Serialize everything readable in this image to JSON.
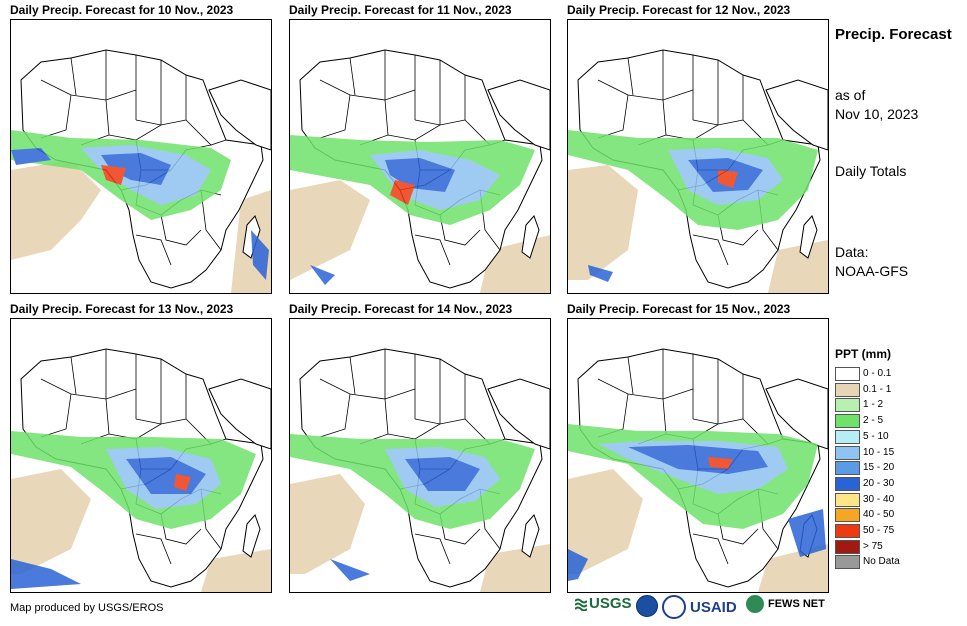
{
  "panels": [
    {
      "title": "Daily Precip. Forecast for 10 Nov., 2023"
    },
    {
      "title": "Daily Precip. Forecast for 11 Nov., 2023"
    },
    {
      "title": "Daily Precip. Forecast for 12 Nov., 2023"
    },
    {
      "title": "Daily Precip. Forecast for 13 Nov., 2023"
    },
    {
      "title": "Daily Precip. Forecast for 14 Nov., 2023"
    },
    {
      "title": "Daily Precip. Forecast for 15 Nov., 2023"
    }
  ],
  "sidebar": {
    "title": "Precip. Forecast",
    "as_of_label": "as of",
    "as_of_date": "Nov 10, 2023",
    "totals": "Daily Totals",
    "data_label": "Data:",
    "data_source": "NOAA-GFS"
  },
  "legend": {
    "title": "PPT (mm)",
    "items": [
      {
        "label": "0 - 0.1",
        "color": "#ffffff"
      },
      {
        "label": "0.1 - 1",
        "color": "#e8d5b5"
      },
      {
        "label": "1 - 2",
        "color": "#b8f0b0"
      },
      {
        "label": "2 - 5",
        "color": "#6fe26a"
      },
      {
        "label": "5 - 10",
        "color": "#b5eef5"
      },
      {
        "label": "10 - 15",
        "color": "#8fc3f2"
      },
      {
        "label": "15 - 20",
        "color": "#5b9be6"
      },
      {
        "label": "20 - 30",
        "color": "#2a63d6"
      },
      {
        "label": "30 - 40",
        "color": "#fde58a"
      },
      {
        "label": "40 - 50",
        "color": "#f5a623"
      },
      {
        "label": "50 - 75",
        "color": "#ee3a12"
      },
      {
        "label": "> 75",
        "color": "#a11a12"
      },
      {
        "label": "No Data",
        "color": "#999999"
      }
    ]
  },
  "footer": {
    "credit": "Map produced by USGS/EROS",
    "logos": {
      "usgs": "USGS",
      "usaid": "USAID",
      "fews": "FEWS NET"
    }
  }
}
